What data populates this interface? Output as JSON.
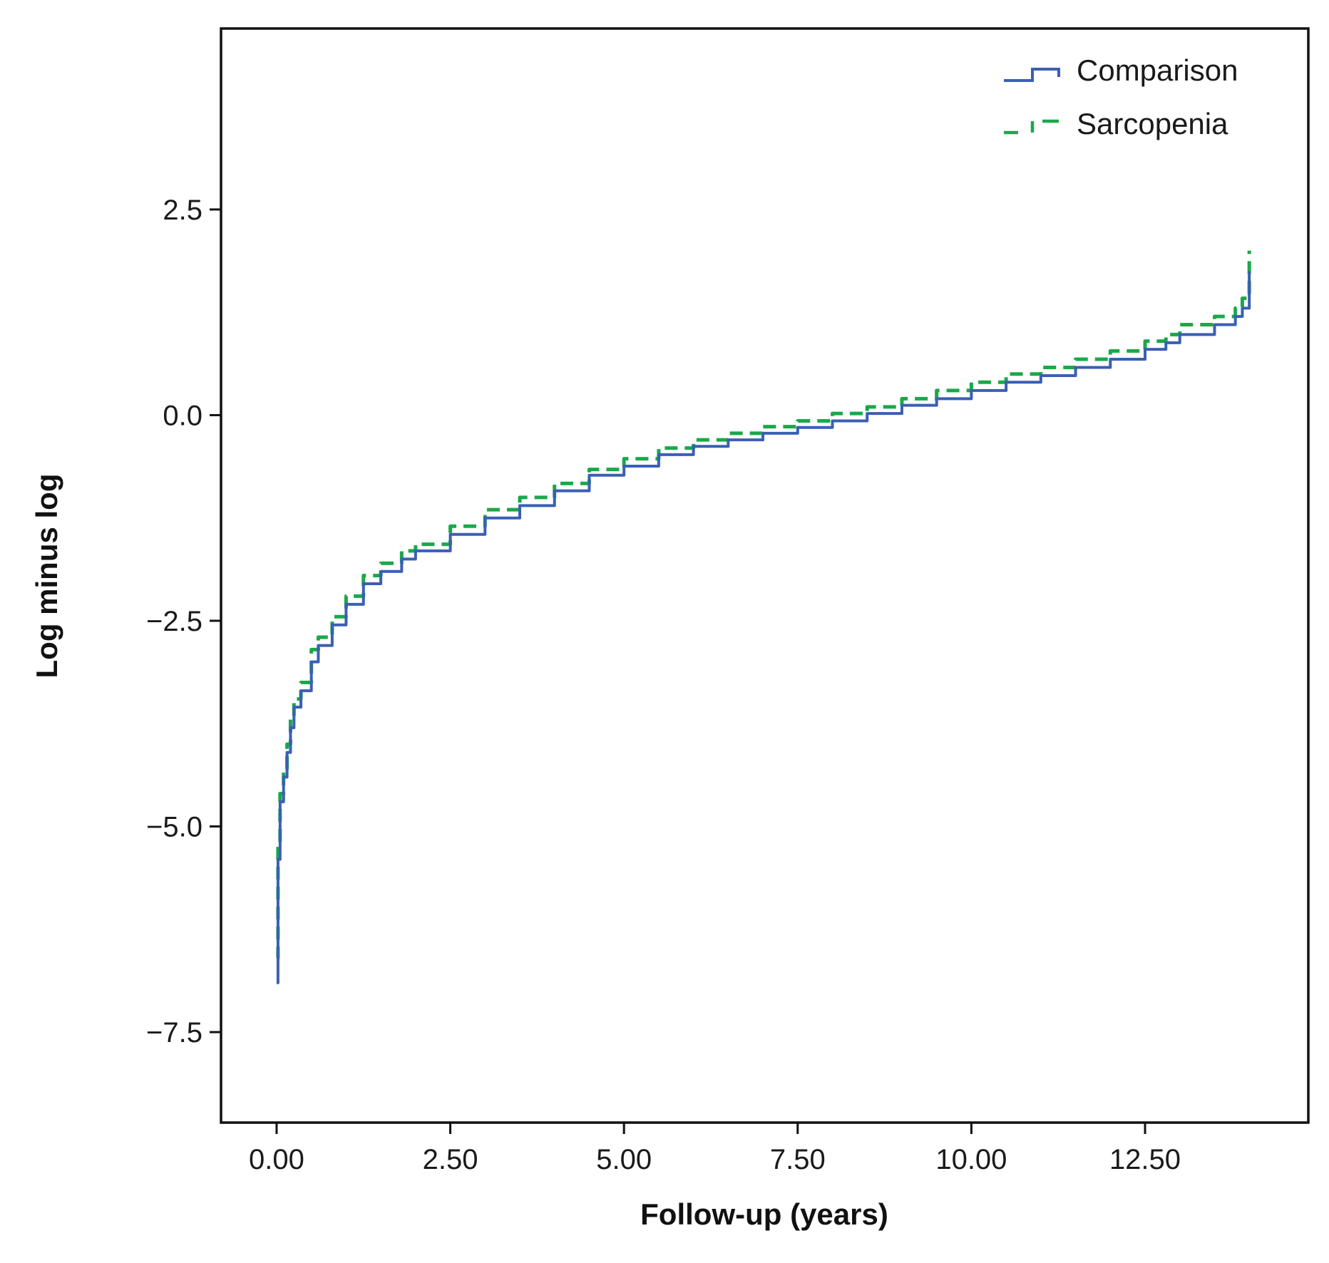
{
  "chart_data": {
    "type": "line",
    "xlabel": "Follow-up (years)",
    "ylabel": "Log minus log",
    "xlim": [
      -0.8,
      14.85
    ],
    "ylim": [
      -8.6,
      4.7
    ],
    "x_ticks": [
      0,
      2.5,
      5,
      7.5,
      10,
      12.5
    ],
    "x_tick_labels": [
      "0.00",
      "2.50",
      "5.00",
      "7.50",
      "10.00",
      "12.50"
    ],
    "y_ticks": [
      2.5,
      0,
      -2.5,
      -5,
      -7.5
    ],
    "y_tick_labels": [
      "2.5",
      "0.0",
      "−2.5",
      "−5.0",
      "−7.5"
    ],
    "grid": false,
    "legend_position": "top-right",
    "series": [
      {
        "name": "Comparison",
        "color": "#3a5fb4",
        "style": "solid",
        "x": [
          0,
          0.02,
          0.05,
          0.1,
          0.15,
          0.2,
          0.25,
          0.35,
          0.5,
          0.6,
          0.8,
          1.0,
          1.25,
          1.5,
          1.8,
          2.0,
          2.5,
          3.0,
          3.5,
          4.0,
          4.5,
          5.0,
          5.5,
          6.0,
          6.5,
          7.0,
          7.5,
          8.0,
          8.5,
          9.0,
          9.5,
          10.0,
          10.5,
          11.0,
          11.5,
          12.0,
          12.5,
          12.8,
          13.0,
          13.5,
          13.8,
          13.9,
          14.0
        ],
        "y": [
          -6.9,
          -5.4,
          -4.7,
          -4.4,
          -4.1,
          -3.8,
          -3.55,
          -3.35,
          -3.0,
          -2.8,
          -2.55,
          -2.3,
          -2.05,
          -1.9,
          -1.75,
          -1.65,
          -1.45,
          -1.25,
          -1.1,
          -0.92,
          -0.73,
          -0.62,
          -0.48,
          -0.38,
          -0.3,
          -0.22,
          -0.15,
          -0.07,
          0.02,
          0.12,
          0.2,
          0.3,
          0.4,
          0.48,
          0.58,
          0.68,
          0.8,
          0.88,
          0.98,
          1.1,
          1.2,
          1.3,
          1.75
        ]
      },
      {
        "name": "Sarcopenia",
        "color": "#1aa84a",
        "style": "dashed",
        "x": [
          0,
          0.02,
          0.05,
          0.1,
          0.15,
          0.2,
          0.25,
          0.35,
          0.5,
          0.6,
          0.8,
          1.0,
          1.25,
          1.5,
          1.8,
          2.0,
          2.5,
          3.0,
          3.5,
          4.0,
          4.5,
          5.0,
          5.5,
          6.0,
          6.5,
          7.0,
          7.5,
          8.0,
          8.5,
          9.0,
          9.5,
          10.0,
          10.5,
          11.0,
          11.5,
          12.0,
          12.5,
          12.8,
          13.0,
          13.5,
          13.8,
          13.9,
          14.0
        ],
        "y": [
          -6.6,
          -5.2,
          -4.6,
          -4.3,
          -4.0,
          -3.7,
          -3.45,
          -3.25,
          -2.85,
          -2.7,
          -2.45,
          -2.2,
          -1.95,
          -1.8,
          -1.65,
          -1.57,
          -1.35,
          -1.15,
          -1.0,
          -0.83,
          -0.66,
          -0.53,
          -0.4,
          -0.3,
          -0.22,
          -0.14,
          -0.07,
          0.02,
          0.1,
          0.2,
          0.3,
          0.4,
          0.5,
          0.58,
          0.68,
          0.78,
          0.9,
          0.98,
          1.1,
          1.2,
          1.3,
          1.42,
          2.0
        ]
      }
    ]
  }
}
